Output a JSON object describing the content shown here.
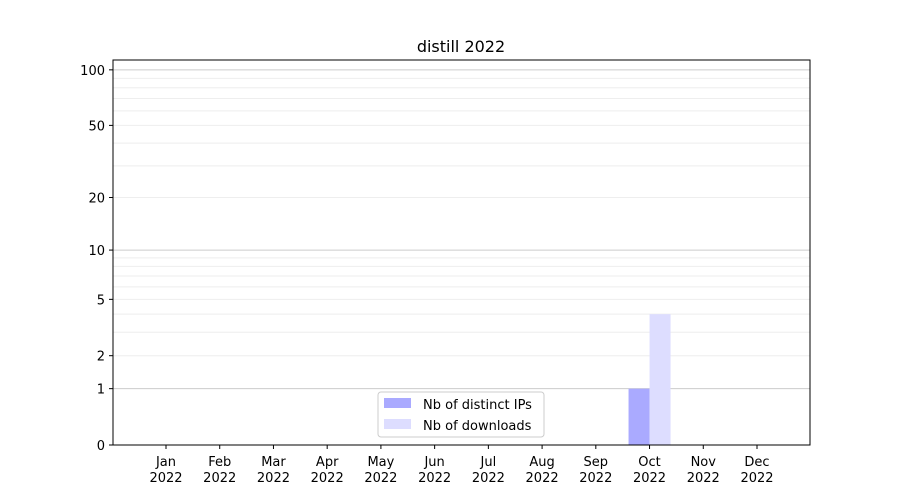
{
  "chart_data": {
    "type": "bar",
    "title": "distill 2022",
    "xlabel": "",
    "ylabel": "",
    "categories": [
      "Jan\n2022",
      "Feb\n2022",
      "Mar\n2022",
      "Apr\n2022",
      "May\n2022",
      "Jun\n2022",
      "Jul\n2022",
      "Aug\n2022",
      "Sep\n2022",
      "Oct\n2022",
      "Nov\n2022",
      "Dec\n2022"
    ],
    "series": [
      {
        "name": "Nb of distinct IPs",
        "color": "#aaaaff",
        "values": [
          0,
          0,
          0,
          0,
          0,
          0,
          0,
          0,
          0,
          1,
          0,
          0
        ]
      },
      {
        "name": "Nb of downloads",
        "color": "#ddddff",
        "values": [
          0,
          0,
          0,
          0,
          0,
          0,
          0,
          0,
          0,
          4,
          0,
          0
        ]
      }
    ],
    "yscale": "log(1+y)",
    "ylim": [
      0,
      113
    ],
    "yticks": [
      0,
      1,
      2,
      5,
      10,
      20,
      50,
      100
    ],
    "grid": true,
    "legend": "bottom-center"
  }
}
